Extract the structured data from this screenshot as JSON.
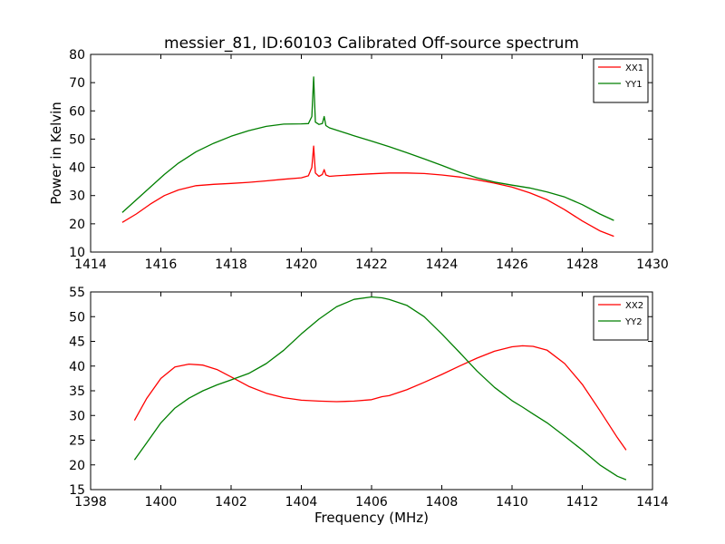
{
  "title": "messier_81, ID:60103 Calibrated Off-source spectrum",
  "colors": {
    "XX": "#ff0000",
    "YY": "#007f00"
  },
  "chart_data": [
    {
      "type": "line",
      "title": "messier_81, ID:60103 Calibrated Off-source spectrum",
      "xlabel": "",
      "ylabel": "Power in Kelvin",
      "xlim": [
        1414,
        1430
      ],
      "ylim": [
        10,
        80
      ],
      "xticks": [
        1414,
        1416,
        1418,
        1420,
        1422,
        1424,
        1426,
        1428,
        1430
      ],
      "yticks": [
        10,
        20,
        30,
        40,
        50,
        60,
        70,
        80
      ],
      "grid": false,
      "legend": "top-right",
      "series": [
        {
          "name": "XX1",
          "color": "#ff0000",
          "x": [
            1414.9,
            1415.3,
            1415.7,
            1416.1,
            1416.5,
            1417.0,
            1417.5,
            1418.0,
            1418.5,
            1419.0,
            1419.5,
            1420.0,
            1420.2,
            1420.3,
            1420.35,
            1420.4,
            1420.5,
            1420.6,
            1420.65,
            1420.7,
            1420.8,
            1421.0,
            1421.5,
            1422.0,
            1422.5,
            1423.0,
            1423.5,
            1424.0,
            1424.5,
            1425.0,
            1425.5,
            1426.0,
            1426.5,
            1427.0,
            1427.5,
            1428.0,
            1428.5,
            1428.9
          ],
          "y": [
            20.5,
            23.5,
            27.0,
            30.0,
            32.0,
            33.5,
            34.0,
            34.3,
            34.7,
            35.2,
            35.8,
            36.3,
            37.0,
            40.0,
            47.5,
            38.0,
            36.8,
            37.5,
            39.2,
            37.3,
            36.8,
            37.0,
            37.4,
            37.7,
            38.0,
            38.0,
            37.8,
            37.3,
            36.6,
            35.6,
            34.4,
            33.0,
            31.0,
            28.5,
            25.0,
            21.0,
            17.5,
            15.6
          ]
        },
        {
          "name": "YY1",
          "color": "#007f00",
          "x": [
            1414.9,
            1415.3,
            1415.7,
            1416.1,
            1416.5,
            1417.0,
            1417.5,
            1418.0,
            1418.5,
            1419.0,
            1419.5,
            1420.0,
            1420.2,
            1420.3,
            1420.35,
            1420.4,
            1420.5,
            1420.6,
            1420.65,
            1420.7,
            1420.8,
            1421.0,
            1421.5,
            1422.0,
            1422.5,
            1423.0,
            1423.5,
            1424.0,
            1424.5,
            1425.0,
            1425.5,
            1426.0,
            1426.5,
            1427.0,
            1427.5,
            1428.0,
            1428.5,
            1428.9
          ],
          "y": [
            24.0,
            28.5,
            33.0,
            37.5,
            41.5,
            45.5,
            48.5,
            51.0,
            53.0,
            54.5,
            55.3,
            55.4,
            55.5,
            58.0,
            72.0,
            56.0,
            55.2,
            55.5,
            58.0,
            54.8,
            54.0,
            53.2,
            51.2,
            49.3,
            47.3,
            45.2,
            43.0,
            40.7,
            38.3,
            36.3,
            34.8,
            33.7,
            32.7,
            31.3,
            29.5,
            26.8,
            23.5,
            21.2
          ]
        }
      ]
    },
    {
      "type": "line",
      "title": "",
      "xlabel": "Frequency (MHz)",
      "ylabel": "",
      "xlim": [
        1398,
        1414
      ],
      "ylim": [
        15,
        55
      ],
      "xticks": [
        1398,
        1400,
        1402,
        1404,
        1406,
        1408,
        1410,
        1412,
        1414
      ],
      "yticks": [
        15,
        20,
        25,
        30,
        35,
        40,
        45,
        50,
        55
      ],
      "grid": false,
      "legend": "top-right",
      "series": [
        {
          "name": "XX2",
          "color": "#ff0000",
          "x": [
            1399.25,
            1399.6,
            1400.0,
            1400.4,
            1400.8,
            1401.2,
            1401.6,
            1402.0,
            1402.5,
            1403.0,
            1403.5,
            1404.0,
            1404.5,
            1405.0,
            1405.5,
            1406.0,
            1406.3,
            1406.5,
            1407.0,
            1407.5,
            1408.0,
            1408.5,
            1409.0,
            1409.5,
            1410.0,
            1410.3,
            1410.6,
            1411.0,
            1411.5,
            1412.0,
            1412.5,
            1413.0,
            1413.25
          ],
          "y": [
            29.0,
            33.5,
            37.5,
            39.8,
            40.4,
            40.2,
            39.3,
            37.8,
            35.9,
            34.5,
            33.6,
            33.1,
            32.9,
            32.8,
            32.9,
            33.2,
            33.8,
            34.0,
            35.2,
            36.7,
            38.3,
            40.0,
            41.6,
            43.0,
            43.9,
            44.1,
            44.0,
            43.2,
            40.5,
            36.3,
            31.0,
            25.5,
            23.0
          ]
        },
        {
          "name": "YY2",
          "color": "#007f00",
          "x": [
            1399.25,
            1399.6,
            1400.0,
            1400.4,
            1400.8,
            1401.2,
            1401.6,
            1402.0,
            1402.5,
            1403.0,
            1403.5,
            1404.0,
            1404.5,
            1405.0,
            1405.5,
            1406.0,
            1406.3,
            1406.5,
            1407.0,
            1407.5,
            1408.0,
            1408.5,
            1409.0,
            1409.5,
            1410.0,
            1410.3,
            1410.6,
            1411.0,
            1411.5,
            1412.0,
            1412.5,
            1413.0,
            1413.25
          ],
          "y": [
            21.0,
            24.5,
            28.5,
            31.5,
            33.5,
            35.0,
            36.2,
            37.2,
            38.5,
            40.5,
            43.2,
            46.5,
            49.5,
            52.0,
            53.5,
            54.0,
            53.8,
            53.5,
            52.3,
            50.0,
            46.5,
            42.8,
            39.0,
            35.7,
            33.0,
            31.7,
            30.3,
            28.5,
            25.8,
            23.0,
            20.0,
            17.7,
            17.0
          ]
        }
      ]
    }
  ]
}
